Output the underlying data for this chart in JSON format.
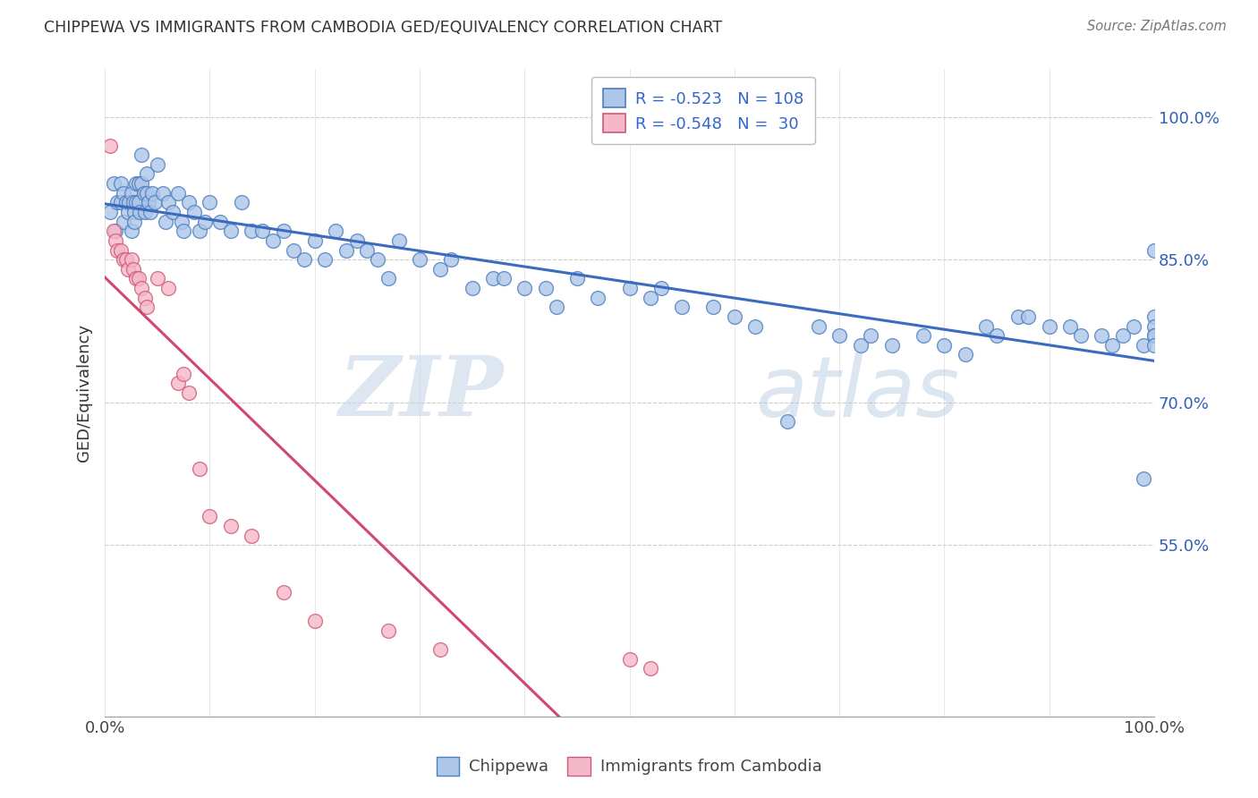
{
  "title": "CHIPPEWA VS IMMIGRANTS FROM CAMBODIA GED/EQUIVALENCY CORRELATION CHART",
  "source": "Source: ZipAtlas.com",
  "ylabel": "GED/Equivalency",
  "ytick_vals": [
    0.55,
    0.7,
    0.85,
    1.0
  ],
  "ytick_labels": [
    "55.0%",
    "70.0%",
    "85.0%",
    "100.0%"
  ],
  "legend_blue_r": "-0.523",
  "legend_blue_n": "108",
  "legend_pink_r": "-0.548",
  "legend_pink_n": "30",
  "legend_label_blue": "Chippewa",
  "legend_label_pink": "Immigrants from Cambodia",
  "blue_fill": "#aec6e8",
  "blue_edge": "#4a7fc1",
  "pink_fill": "#f5b8c8",
  "pink_edge": "#d05878",
  "blue_line": "#3a6bbf",
  "pink_line": "#d04870",
  "watermark_zip": "ZIP",
  "watermark_atlas": "atlas",
  "xlim": [
    0.0,
    1.0
  ],
  "ylim": [
    0.37,
    1.05
  ],
  "blue_x": [
    0.005,
    0.008,
    0.01,
    0.012,
    0.015,
    0.015,
    0.018,
    0.018,
    0.02,
    0.022,
    0.023,
    0.025,
    0.025,
    0.027,
    0.028,
    0.028,
    0.03,
    0.03,
    0.032,
    0.032,
    0.033,
    0.035,
    0.035,
    0.037,
    0.038,
    0.04,
    0.04,
    0.042,
    0.043,
    0.045,
    0.048,
    0.05,
    0.055,
    0.058,
    0.06,
    0.065,
    0.07,
    0.073,
    0.075,
    0.08,
    0.085,
    0.09,
    0.095,
    0.1,
    0.11,
    0.12,
    0.13,
    0.14,
    0.15,
    0.16,
    0.17,
    0.18,
    0.19,
    0.2,
    0.21,
    0.22,
    0.23,
    0.24,
    0.25,
    0.26,
    0.27,
    0.28,
    0.3,
    0.32,
    0.33,
    0.35,
    0.37,
    0.38,
    0.4,
    0.42,
    0.43,
    0.45,
    0.47,
    0.5,
    0.52,
    0.53,
    0.55,
    0.58,
    0.6,
    0.62,
    0.65,
    0.68,
    0.7,
    0.72,
    0.73,
    0.75,
    0.78,
    0.8,
    0.82,
    0.84,
    0.85,
    0.87,
    0.88,
    0.9,
    0.92,
    0.93,
    0.95,
    0.96,
    0.97,
    0.98,
    0.99,
    0.99,
    1.0,
    1.0,
    1.0,
    1.0,
    1.0,
    1.0
  ],
  "blue_y": [
    0.9,
    0.93,
    0.88,
    0.91,
    0.93,
    0.91,
    0.92,
    0.89,
    0.91,
    0.9,
    0.91,
    0.92,
    0.88,
    0.91,
    0.9,
    0.89,
    0.93,
    0.91,
    0.93,
    0.91,
    0.9,
    0.96,
    0.93,
    0.92,
    0.9,
    0.94,
    0.92,
    0.91,
    0.9,
    0.92,
    0.91,
    0.95,
    0.92,
    0.89,
    0.91,
    0.9,
    0.92,
    0.89,
    0.88,
    0.91,
    0.9,
    0.88,
    0.89,
    0.91,
    0.89,
    0.88,
    0.91,
    0.88,
    0.88,
    0.87,
    0.88,
    0.86,
    0.85,
    0.87,
    0.85,
    0.88,
    0.86,
    0.87,
    0.86,
    0.85,
    0.83,
    0.87,
    0.85,
    0.84,
    0.85,
    0.82,
    0.83,
    0.83,
    0.82,
    0.82,
    0.8,
    0.83,
    0.81,
    0.82,
    0.81,
    0.82,
    0.8,
    0.8,
    0.79,
    0.78,
    0.68,
    0.78,
    0.77,
    0.76,
    0.77,
    0.76,
    0.77,
    0.76,
    0.75,
    0.78,
    0.77,
    0.79,
    0.79,
    0.78,
    0.78,
    0.77,
    0.77,
    0.76,
    0.77,
    0.78,
    0.76,
    0.62,
    0.86,
    0.79,
    0.78,
    0.77,
    0.77,
    0.76
  ],
  "pink_x": [
    0.005,
    0.008,
    0.01,
    0.012,
    0.015,
    0.018,
    0.02,
    0.022,
    0.025,
    0.027,
    0.03,
    0.032,
    0.035,
    0.038,
    0.04,
    0.05,
    0.06,
    0.07,
    0.075,
    0.08,
    0.09,
    0.1,
    0.12,
    0.14,
    0.17,
    0.2,
    0.27,
    0.32,
    0.5,
    0.52
  ],
  "pink_y": [
    0.97,
    0.88,
    0.87,
    0.86,
    0.86,
    0.85,
    0.85,
    0.84,
    0.85,
    0.84,
    0.83,
    0.83,
    0.82,
    0.81,
    0.8,
    0.83,
    0.82,
    0.72,
    0.73,
    0.71,
    0.63,
    0.58,
    0.57,
    0.56,
    0.5,
    0.47,
    0.46,
    0.44,
    0.43,
    0.42
  ]
}
